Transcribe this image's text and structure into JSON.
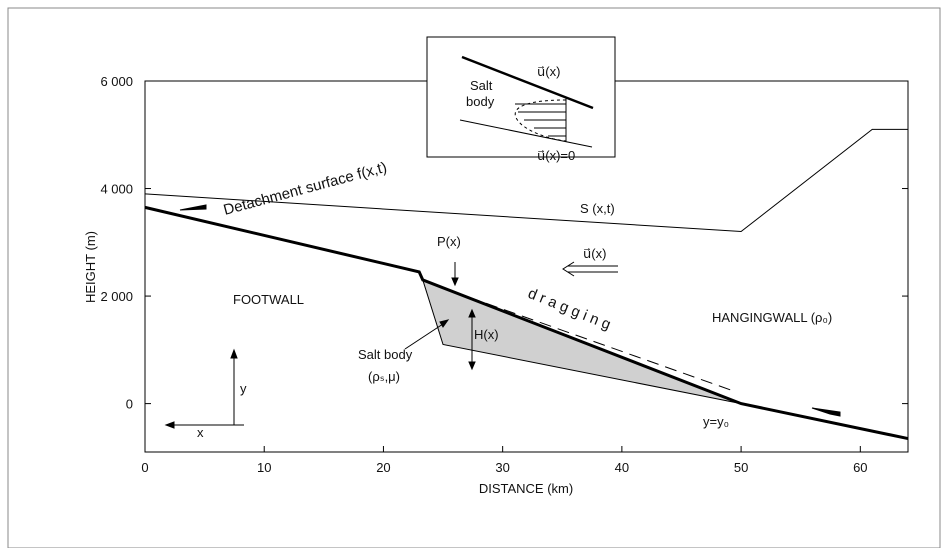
{
  "chart_data": {
    "type": "line",
    "xlabel": "DISTANCE (km)",
    "ylabel": "HEIGHT (m)",
    "xlim": [
      0,
      64
    ],
    "ylim": [
      -900,
      6000
    ],
    "xticks": [
      0,
      10,
      20,
      30,
      40,
      50,
      60
    ],
    "yticks": [
      {
        "value": 0,
        "label": "0"
      },
      {
        "value": 2000,
        "label": "2 000"
      },
      {
        "value": 4000,
        "label": "4 000"
      },
      {
        "value": 6000,
        "label": "6 000"
      }
    ],
    "series": [
      {
        "style": "area",
        "color": "#d0d0d0",
        "x": [
          23.3,
          25,
          50
        ],
        "values": [
          2300,
          1100,
          0
        ]
      },
      {
        "style": "thick",
        "color": "#000000",
        "x": [
          0,
          23,
          23.3,
          50,
          64
        ],
        "values": [
          3650,
          2450,
          2300,
          0,
          -650
        ]
      },
      {
        "style": "thin",
        "color": "#000000",
        "x": [
          0,
          50,
          61,
          64
        ],
        "values": [
          3900,
          3200,
          5100,
          5100
        ]
      },
      {
        "style": "dashed",
        "color": "#000000",
        "x": [
          24.1,
          49.3
        ],
        "values": [
          2220,
          240
        ]
      }
    ],
    "annotations": [
      "Detachment surface f(x,t)",
      "S (x,t)",
      "P(x)",
      "u⃗(x)",
      "FOOTWALL",
      "d r a g g i n g",
      "H(x)",
      "HANGINGWALL (ρ₀)",
      "Salt body",
      "(ρₛ,μ)",
      "y=y₀",
      "y",
      "x"
    ],
    "inset": [
      "Salt",
      "body",
      "u⃗(x)",
      "u⃗(x)=0"
    ]
  }
}
